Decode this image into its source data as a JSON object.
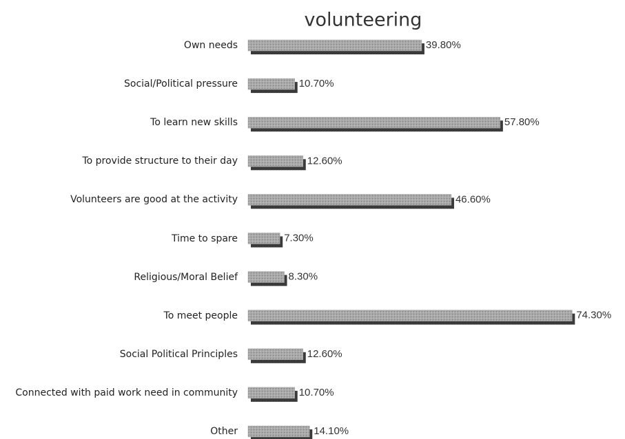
{
  "chart_data": {
    "type": "bar",
    "orientation": "horizontal",
    "title": "volunteering",
    "categories": [
      "Own needs",
      "Social/Political pressure",
      "To learn new skills",
      "To provide structure to their day",
      "Volunteers are good at the activity",
      "Time to spare",
      "Religious/Moral Belief",
      "To meet people",
      "Social Political Principles",
      "Connected with paid work need in community",
      "Other"
    ],
    "values": [
      39.8,
      10.7,
      57.8,
      12.6,
      46.6,
      7.3,
      8.3,
      74.3,
      12.6,
      10.7,
      14.1
    ],
    "value_labels": [
      "39.80%",
      "10.70%",
      "57.80%",
      "12.60%",
      "46.60%",
      "7.30%",
      "8.30%",
      "74.30%",
      "12.60%",
      "10.70%",
      "14.10%"
    ],
    "color": "#a3a3a3"
  }
}
